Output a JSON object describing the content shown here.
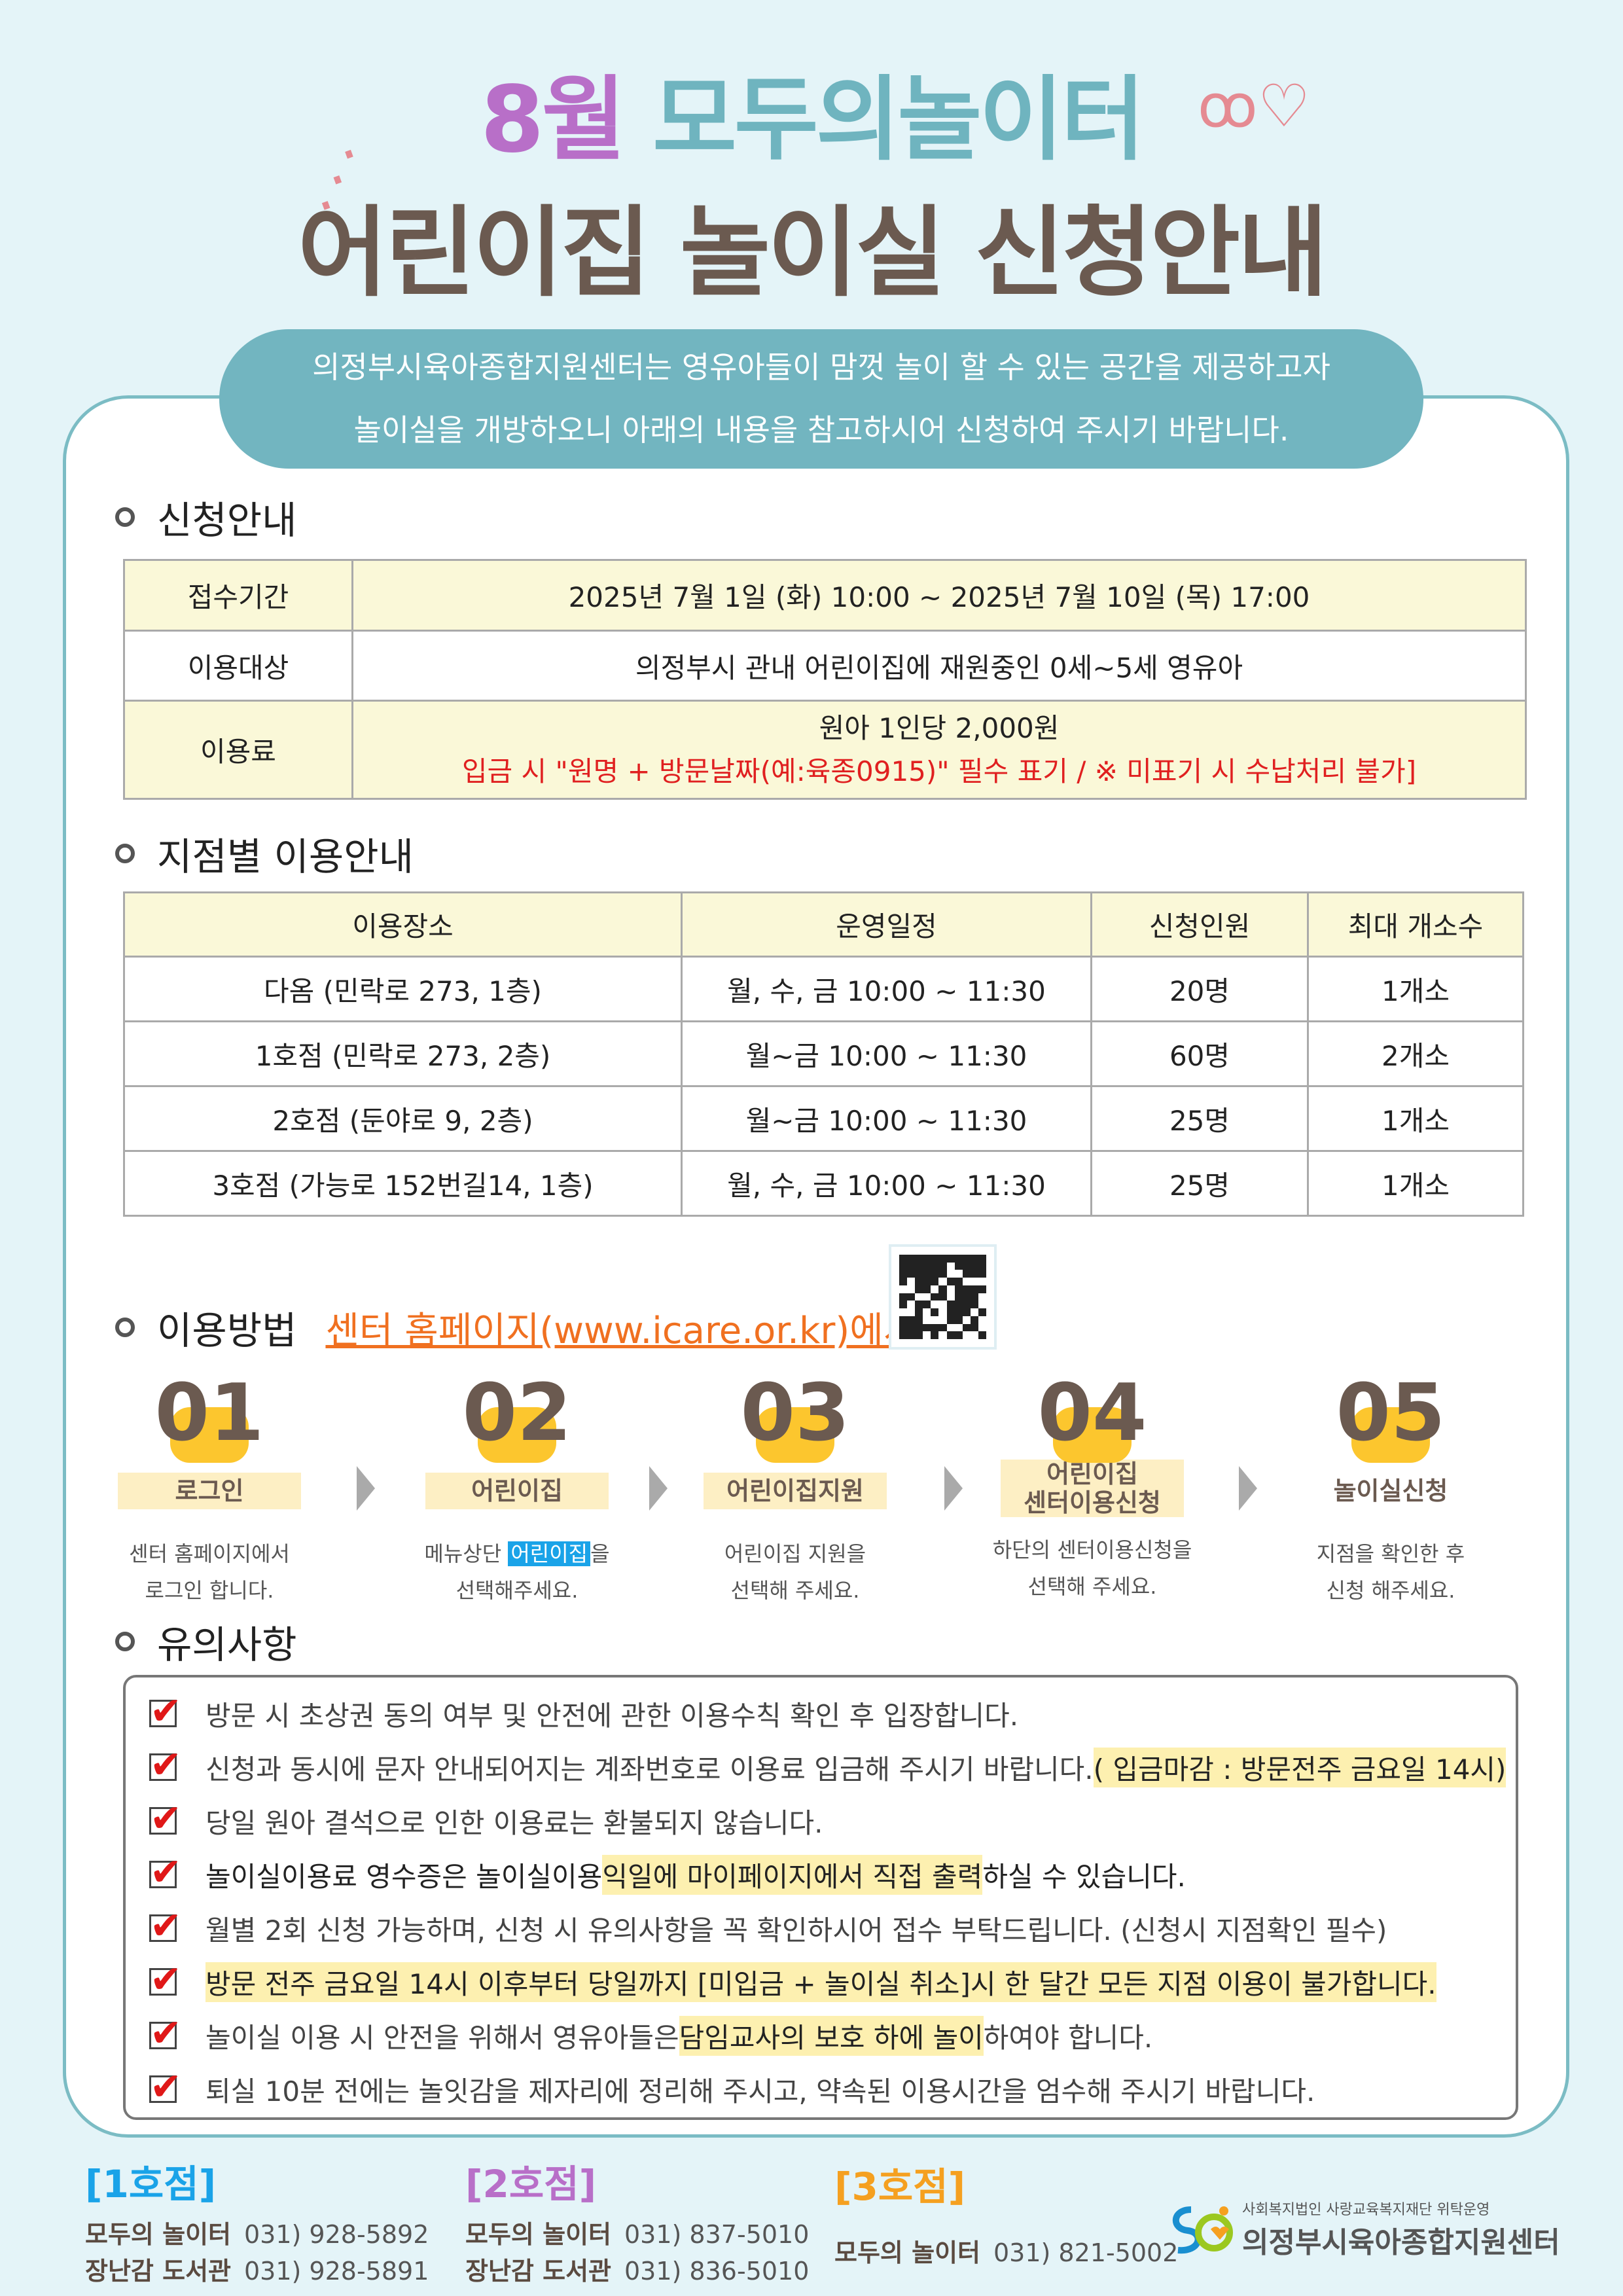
{
  "title": {
    "month": "8월",
    "name": "모두의놀이터",
    "subtitle": "어린이집 놀이실 신청안내"
  },
  "intro": {
    "line1": "의정부시육아종합지원센터는 영유아들이 맘껏 놀이 할 수 있는  공간을 제공하고자",
    "line2": "놀이실을 개방하오니 아래의 내용을 참고하시어 신청하여 주시기 바랍니다."
  },
  "section1": {
    "heading": "신청안내",
    "rows": [
      {
        "label": "접수기간",
        "value": "2025년 7월 1일 (화) 10:00 ~ 2025년 7월 10일 (목) 17:00"
      },
      {
        "label": "이용대상",
        "value": "의정부시 관내 어린이집에 재원중인 0세~5세 영유아"
      },
      {
        "label": "이용료",
        "value": "원아 1인당 2,000원",
        "note": "입금 시 \"원명 + 방문날짜(예:육종0915)\" 필수 표기 / ※ 미표기 시 수납처리 불가]"
      }
    ]
  },
  "section2": {
    "heading": "지점별 이용안내",
    "headers": [
      "이용장소",
      "운영일정",
      "신청인원",
      "최대 개소수"
    ],
    "rows": [
      [
        "다옴 (민락로 273, 1층)",
        "월, 수, 금 10:00 ~ 11:30",
        "20명",
        "1개소"
      ],
      [
        "1호점 (민락로 273, 2층)",
        "월~금 10:00 ~ 11:30",
        "60명",
        "2개소"
      ],
      [
        "2호점 (둔야로 9, 2층)",
        "월~금 10:00 ~ 11:30",
        "25명",
        "1개소"
      ],
      [
        "3호점 (가능로 152번길14, 1층)",
        "월, 수, 금 10:00 ~ 11:30",
        "25명",
        "1개소"
      ]
    ]
  },
  "section3": {
    "heading": "이용방법",
    "link": "센터 홈페이지(www.icare.or.kr)에서 신청",
    "steps": [
      {
        "num": "01",
        "label": "로그인",
        "d1": "센터 홈페이지에서",
        "d2": "로그인 합니다."
      },
      {
        "num": "02",
        "label": "어린이집",
        "d1a": "메뉴상단 ",
        "d1b": "어린이집",
        "d1c": "을",
        "d2": "선택해주세요."
      },
      {
        "num": "03",
        "label": "어린이집지원",
        "d1": "어린이집 지원을",
        "d2": "선택해 주세요."
      },
      {
        "num": "04",
        "label": "어린이집\n센터이용신청",
        "d1": "하단의 센터이용신청을",
        "d2": "선택해 주세요."
      },
      {
        "num": "05",
        "label": "놀이실신청",
        "d1": "지점을 확인한 후",
        "d2": "신청 해주세요."
      }
    ]
  },
  "section4": {
    "heading": "유의사항",
    "notes": [
      {
        "a": "방문 시 초상권 동의 여부 및  안전에 관한 이용수칙 확인 후 입장합니다."
      },
      {
        "a": "신청과 동시에 문자 안내되어지는 계좌번호로 이용료 입금해 주시기 바랍니다. ",
        "h": "( 입금마감 : 방문전주 금요일 14시)"
      },
      {
        "a": "당일 원아 결석으로 인한 이용료는 환불되지 않습니다."
      },
      {
        "a": "놀이실이용료 영수증은 놀이실이용 ",
        "h": "익일에 마이페이지에서 직접 출력",
        "b": "하실 수 있습니다."
      },
      {
        "a": "월별 2회 신청 가능하며, 신청 시 유의사항을 꼭 확인하시어 접수 부탁드립니다. (신청시 지점확인 필수)"
      },
      {
        "h": "방문 전주 금요일 14시 이후부터 당일까지 [미입금 + 놀이실 취소]시 한 달간 모든 지점 이용이 불가합니다."
      },
      {
        "a": "놀이실 이용 시 안전을 위해서 영유아들은 ",
        "h": "담임교사의 보호 하에 놀이",
        "b": "하여야 합니다."
      },
      {
        "a": "퇴실 10분 전에는 놀잇감을 제자리에 정리해 주시고, 약속된 이용시간을 엄수해 주시기 바랍니다."
      }
    ]
  },
  "footer": {
    "branches": [
      {
        "label": "[1호점]",
        "color": "#1aa3e8",
        "lines": [
          {
            "n": "모두의 놀이터",
            "p": "031) 928-5892"
          },
          {
            "n": "장난감 도서관",
            "p": "031) 928-5891"
          }
        ]
      },
      {
        "label": "[2호점]",
        "color": "#b86fc8",
        "lines": [
          {
            "n": "모두의 놀이터",
            "p": "031) 837-5010"
          },
          {
            "n": "장난감 도서관",
            "p": "031) 836-5010"
          }
        ]
      },
      {
        "label": "[3호점]",
        "color": "#f5a020",
        "lines": [
          {
            "n": "모두의 놀이터",
            "p": "031) 821-5002"
          }
        ]
      }
    ],
    "logo": {
      "sub": "사회복지법인 사랑교육복지재단 위탁운영",
      "name": "의정부시육아종합지원센터"
    }
  },
  "colors": {
    "teal": "#72b5c0",
    "purple": "#b86fc8",
    "brown": "#6b5a50",
    "yellow": "#fcc62e"
  }
}
